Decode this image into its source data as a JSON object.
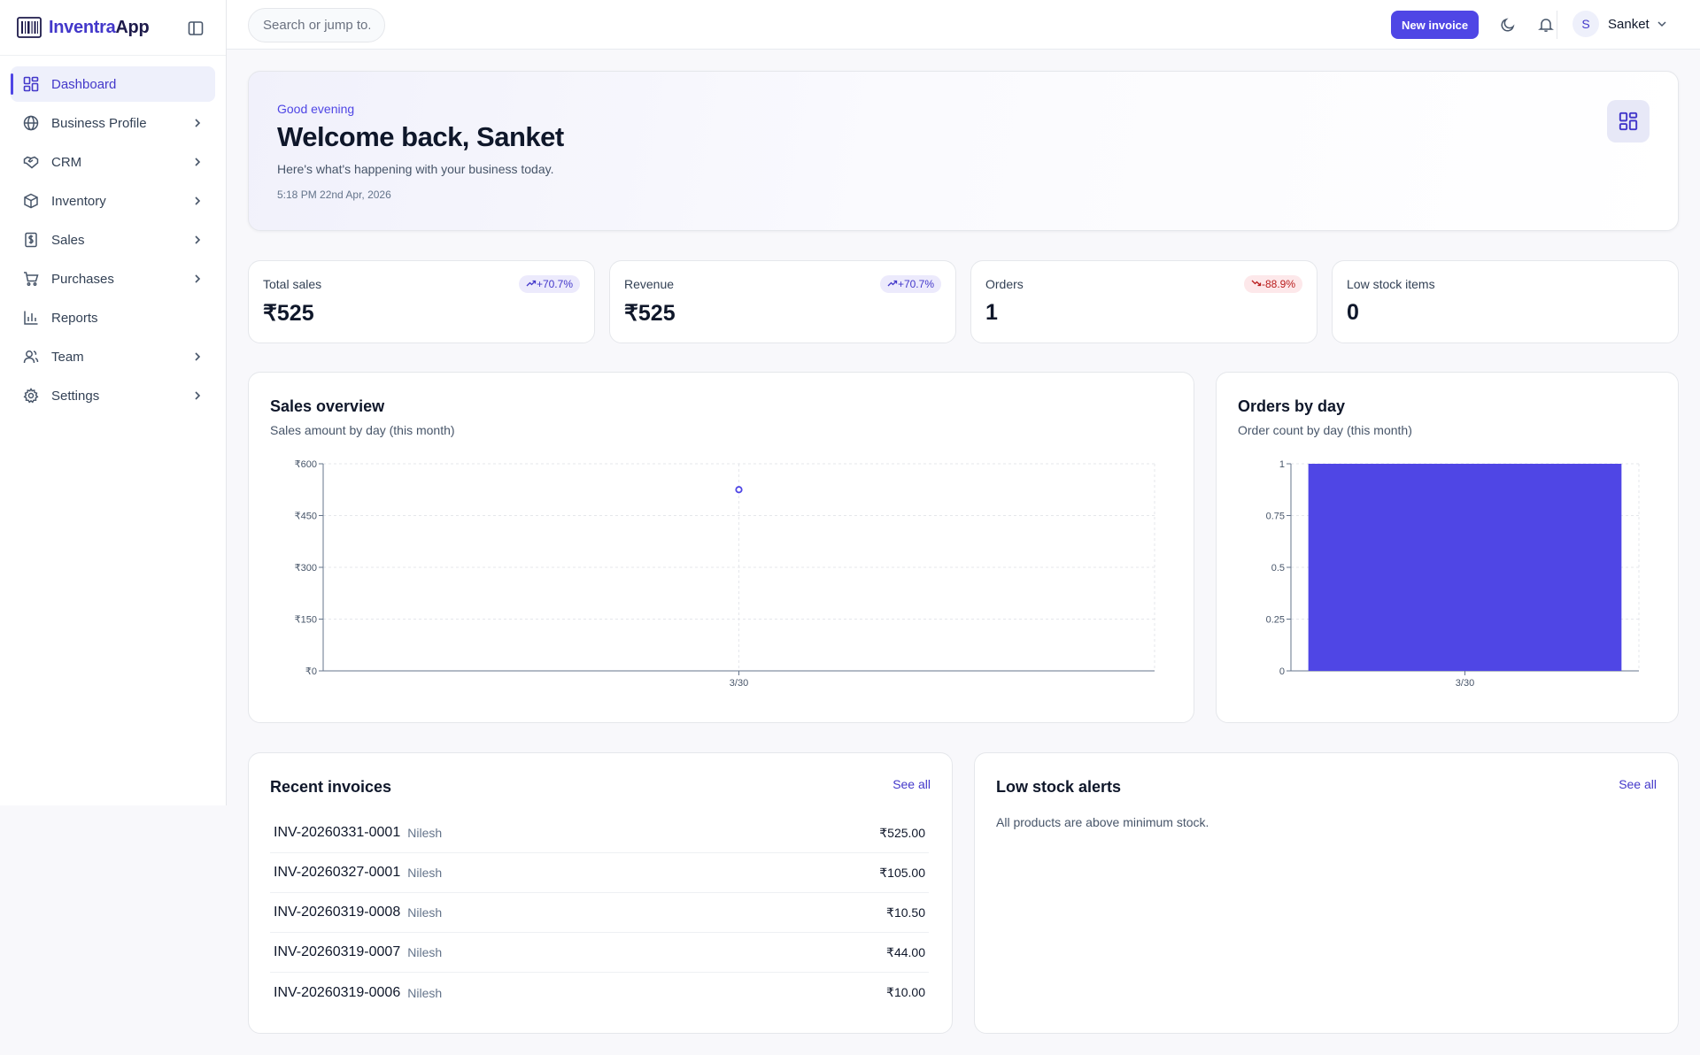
{
  "app": {
    "name_part1": "Inventra",
    "name_part2": "App"
  },
  "sidebar": {
    "items": [
      {
        "label": "Dashboard",
        "icon": "dashboard-icon",
        "active": true,
        "has_children": false
      },
      {
        "label": "Business Profile",
        "icon": "globe-icon",
        "has_children": true
      },
      {
        "label": "CRM",
        "icon": "handshake-icon",
        "has_children": true
      },
      {
        "label": "Inventory",
        "icon": "package-icon",
        "has_children": true
      },
      {
        "label": "Sales",
        "icon": "receipt-dollar-icon",
        "has_children": true
      },
      {
        "label": "Purchases",
        "icon": "cart-icon",
        "has_children": true
      },
      {
        "label": "Reports",
        "icon": "bar-chart-icon",
        "has_children": false
      },
      {
        "label": "Team",
        "icon": "users-icon",
        "has_children": true
      },
      {
        "label": "Settings",
        "icon": "gear-icon",
        "has_children": true
      }
    ]
  },
  "topbar": {
    "search_placeholder": "Search or jump to...",
    "new_invoice_label": "New invoice",
    "user_initial": "S",
    "user_name": "Sanket"
  },
  "welcome": {
    "greeting": "Good evening",
    "title": "Welcome back, Sanket",
    "subtitle": "Here's what's happening with your business today.",
    "timestamp": "5:18 PM 22nd Apr, 2026"
  },
  "stats": [
    {
      "label": "Total sales",
      "value": "₹525",
      "badge": "+70.7%",
      "trend": "up"
    },
    {
      "label": "Revenue",
      "value": "₹525",
      "badge": "+70.7%",
      "trend": "up"
    },
    {
      "label": "Orders",
      "value": "1",
      "badge": "-88.9%",
      "trend": "down"
    },
    {
      "label": "Low stock items",
      "value": "0",
      "badge": "",
      "trend": ""
    }
  ],
  "colors": {
    "accent": "#4f46e5",
    "up_badge_bg": "#eceafc",
    "down_badge_bg": "#fde8ea",
    "down_text": "#b91c1c"
  },
  "sales_overview": {
    "title": "Sales overview",
    "subtitle": "Sales amount by day (this month)"
  },
  "orders_by_day": {
    "title": "Orders by day",
    "subtitle": "Order count by day (this month)"
  },
  "chart_data": [
    {
      "type": "line",
      "x": [
        "3/30"
      ],
      "series": [
        {
          "values": [
            525
          ]
        }
      ],
      "y_ticks": [
        "₹0",
        "₹150",
        "₹300",
        "₹450",
        "₹600"
      ],
      "ylim": [
        0,
        600
      ],
      "grid": true,
      "title": "Sales overview",
      "subtitle": "Sales amount by day (this month)"
    },
    {
      "type": "bar",
      "categories": [
        "3/30"
      ],
      "values": [
        1
      ],
      "y_ticks": [
        "0",
        "0.25",
        "0.5",
        "0.75",
        "1"
      ],
      "ylim": [
        0,
        1
      ],
      "grid": true,
      "title": "Orders by day",
      "subtitle": "Order count by day (this month)"
    }
  ],
  "recent_invoices": {
    "title": "Recent invoices",
    "see_all": "See all",
    "rows": [
      {
        "id": "INV-20260331-0001",
        "customer": "Nilesh",
        "amount": "₹525.00"
      },
      {
        "id": "INV-20260327-0001",
        "customer": "Nilesh",
        "amount": "₹105.00"
      },
      {
        "id": "INV-20260319-0008",
        "customer": "Nilesh",
        "amount": "₹10.50"
      },
      {
        "id": "INV-20260319-0007",
        "customer": "Nilesh",
        "amount": "₹44.00"
      },
      {
        "id": "INV-20260319-0006",
        "customer": "Nilesh",
        "amount": "₹10.00"
      }
    ]
  },
  "low_stock": {
    "title": "Low stock alerts",
    "see_all": "See all",
    "message": "All products are above minimum stock."
  }
}
